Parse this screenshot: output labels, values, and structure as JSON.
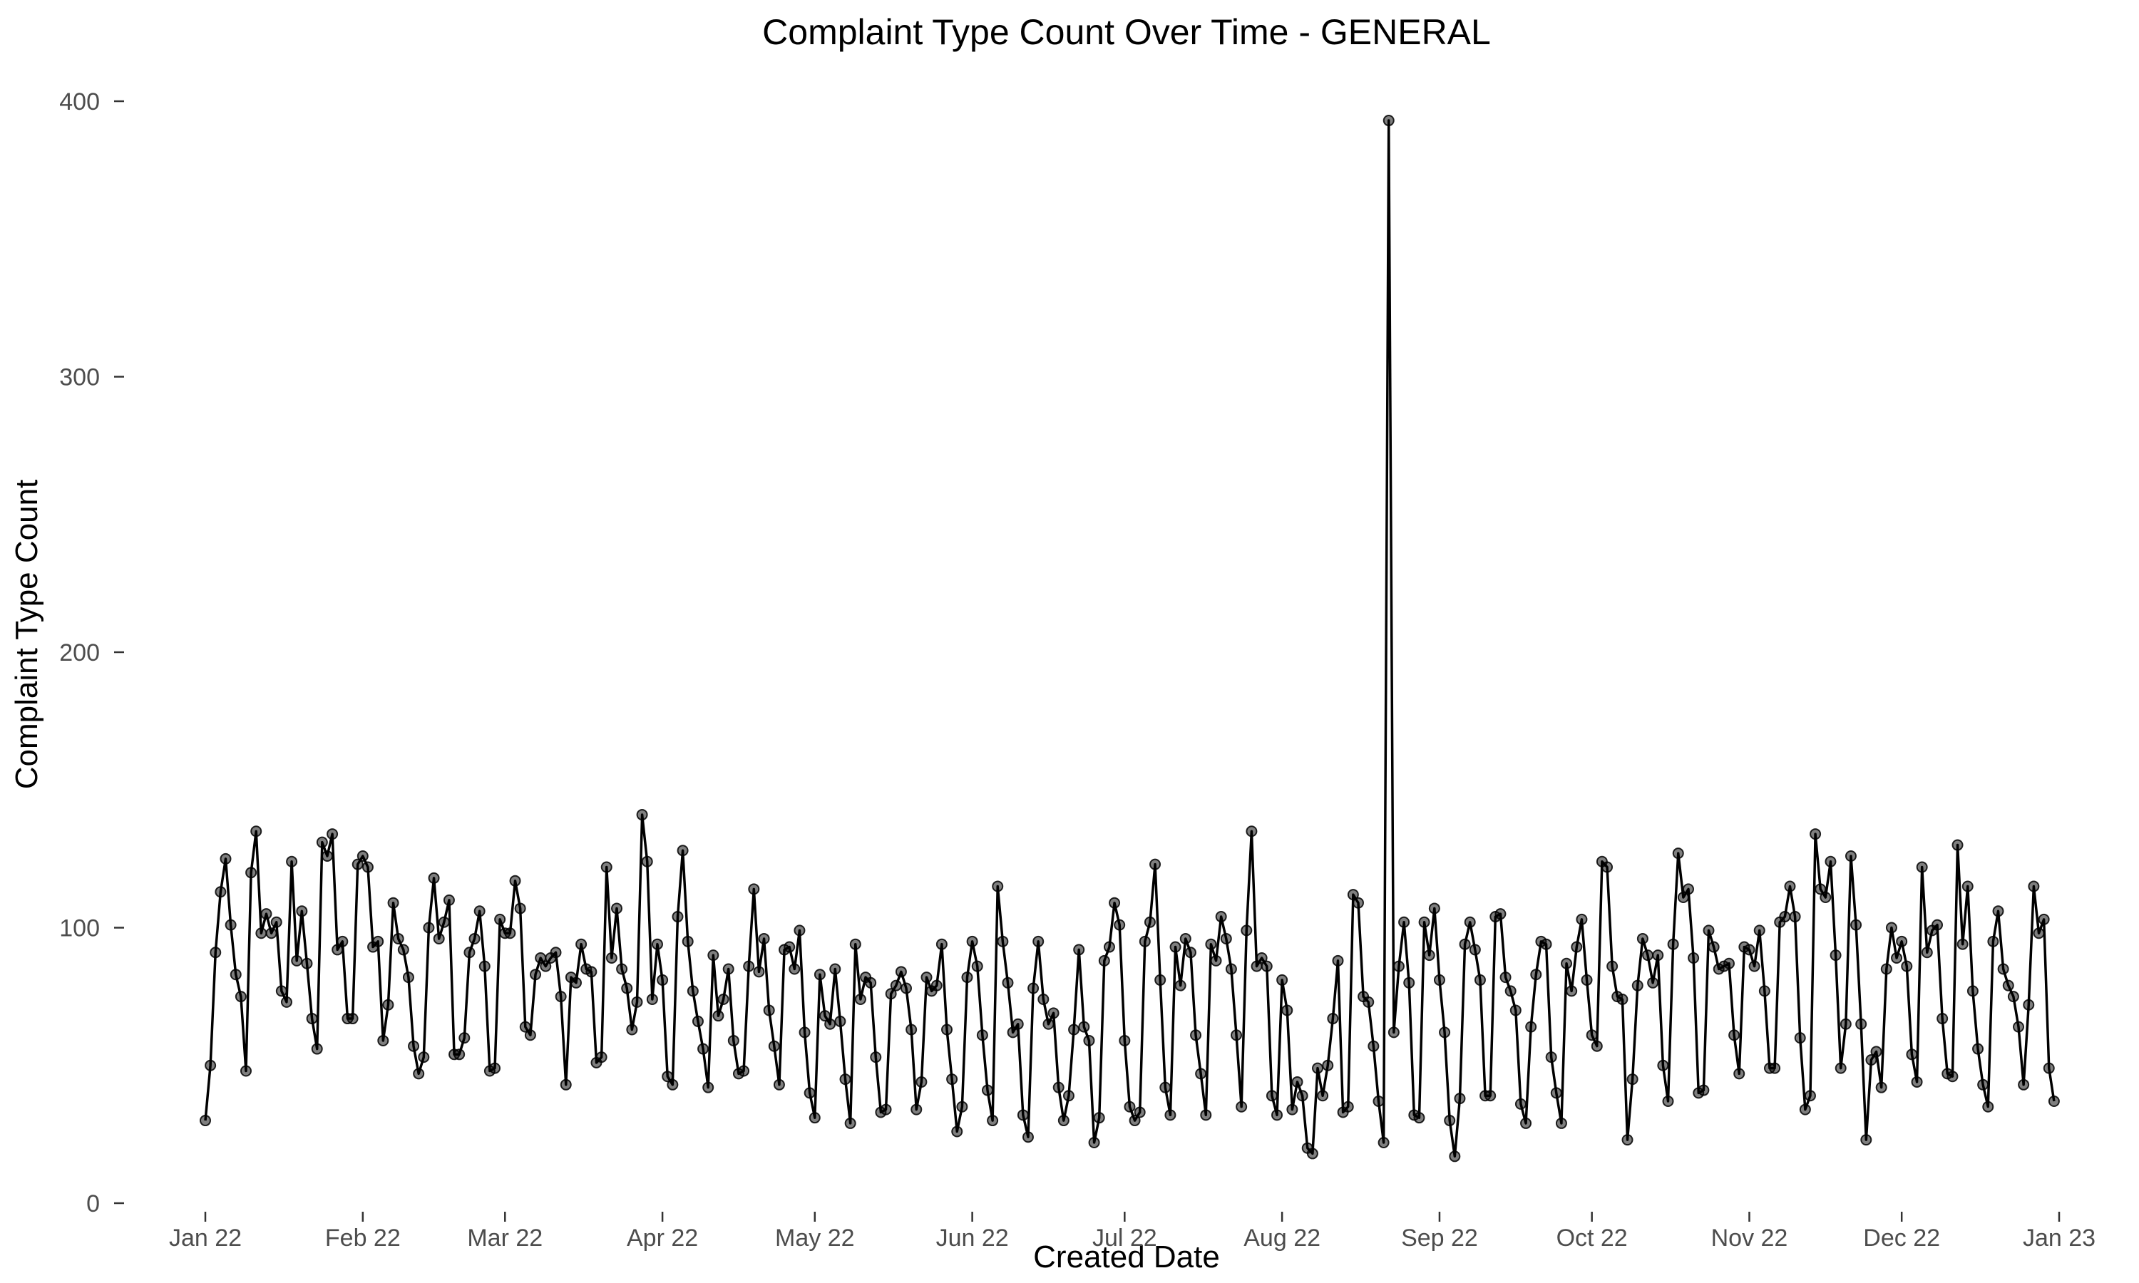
{
  "chart_data": {
    "type": "line",
    "title": "Complaint Type Count Over Time - GENERAL",
    "xlabel": "Created Date",
    "ylabel": "Complaint Type Count",
    "x_start": "2022-01-01",
    "xlim": [
      "2022-01-01",
      "2023-01-01"
    ],
    "ylim": [
      0,
      400
    ],
    "x_ticks": [
      {
        "label": "Jan 22",
        "date": "2022-01-01"
      },
      {
        "label": "Feb 22",
        "date": "2022-02-01"
      },
      {
        "label": "Mar 22",
        "date": "2022-03-01"
      },
      {
        "label": "Apr 22",
        "date": "2022-04-01"
      },
      {
        "label": "May 22",
        "date": "2022-05-01"
      },
      {
        "label": "Jun 22",
        "date": "2022-06-01"
      },
      {
        "label": "Jul 22",
        "date": "2022-07-01"
      },
      {
        "label": "Aug 22",
        "date": "2022-08-01"
      },
      {
        "label": "Sep 22",
        "date": "2022-09-01"
      },
      {
        "label": "Oct 22",
        "date": "2022-10-01"
      },
      {
        "label": "Nov 22",
        "date": "2022-11-01"
      },
      {
        "label": "Dec 22",
        "date": "2022-12-01"
      },
      {
        "label": "Jan 23",
        "date": "2023-01-01"
      }
    ],
    "y_ticks": [
      0,
      100,
      200,
      300,
      400
    ],
    "grid": false,
    "legend": "none",
    "series": [
      {
        "values": [
          30,
          50,
          91,
          113,
          125,
          101,
          83,
          75,
          48,
          120,
          135,
          98,
          105,
          98,
          102,
          77,
          73,
          124,
          88,
          106,
          87,
          67,
          56,
          131,
          126,
          134,
          92,
          95,
          67,
          67,
          123,
          126,
          122,
          93,
          95,
          59,
          72,
          109,
          96,
          92,
          82,
          57,
          47,
          53,
          100,
          118,
          96,
          102,
          110,
          54,
          54,
          60,
          91,
          96,
          106,
          86,
          48,
          49,
          103,
          98,
          98,
          117,
          107,
          64,
          61,
          83,
          89,
          86,
          89,
          91,
          75,
          43,
          82,
          80,
          94,
          85,
          84,
          51,
          53,
          122,
          89,
          107,
          85,
          78,
          63,
          73,
          141,
          124,
          74,
          94,
          81,
          46,
          43,
          104,
          128,
          95,
          77,
          66,
          56,
          42,
          90,
          68,
          74,
          85,
          59,
          47,
          48,
          86,
          114,
          84,
          96,
          70,
          57,
          43,
          92,
          93,
          85,
          99,
          62,
          40,
          31,
          83,
          68,
          65,
          85,
          66,
          45,
          29,
          94,
          74,
          82,
          80,
          53,
          33,
          34,
          76,
          79,
          84,
          78,
          63,
          34,
          44,
          82,
          77,
          79,
          94,
          63,
          45,
          26,
          35,
          82,
          95,
          86,
          61,
          41,
          30,
          115,
          95,
          80,
          62,
          65,
          32,
          24,
          78,
          95,
          74,
          65,
          69,
          42,
          30,
          39,
          63,
          92,
          64,
          59,
          22,
          31,
          88,
          93,
          109,
          101,
          59,
          35,
          30,
          33,
          95,
          102,
          123,
          81,
          42,
          32,
          93,
          79,
          96,
          91,
          61,
          47,
          32,
          94,
          88,
          104,
          96,
          85,
          61,
          35,
          99,
          135,
          86,
          89,
          86,
          39,
          32,
          81,
          70,
          34,
          44,
          39,
          20,
          18,
          49,
          39,
          50,
          67,
          88,
          33,
          35,
          112,
          109,
          75,
          73,
          57,
          37,
          22,
          393,
          62,
          86,
          102,
          80,
          32,
          31,
          102,
          90,
          107,
          81,
          62,
          30,
          17,
          38,
          94,
          102,
          92,
          81,
          39,
          39,
          104,
          105,
          82,
          77,
          70,
          36,
          29,
          64,
          83,
          95,
          94,
          53,
          40,
          29,
          87,
          77,
          93,
          103,
          81,
          61,
          57,
          124,
          122,
          86,
          75,
          74,
          23,
          45,
          79,
          96,
          90,
          80,
          90,
          50,
          37,
          94,
          127,
          111,
          114,
          89,
          40,
          41,
          99,
          93,
          85,
          86,
          87,
          61,
          47,
          93,
          92,
          86,
          99,
          77,
          49,
          49,
          102,
          104,
          115,
          104,
          60,
          34,
          39,
          134,
          114,
          111,
          124,
          90,
          49,
          65,
          126,
          101,
          65,
          23,
          52,
          55,
          42,
          85,
          100,
          89,
          95,
          86,
          54,
          44,
          122,
          91,
          99,
          101,
          67,
          47,
          46,
          130,
          94,
          115,
          77,
          56,
          43,
          35,
          95,
          106,
          85,
          79,
          75,
          64,
          43,
          72,
          115,
          98,
          103,
          49,
          37
        ]
      }
    ]
  }
}
